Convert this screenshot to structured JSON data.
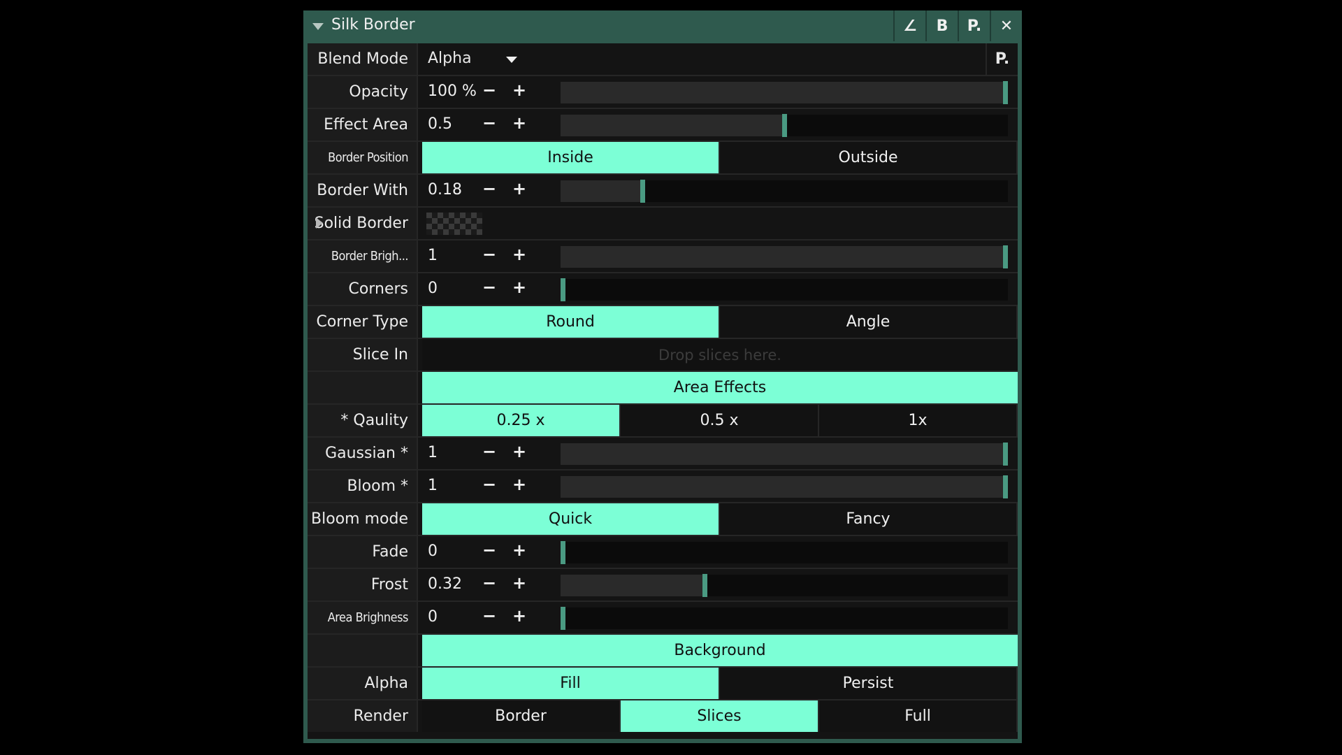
{
  "panel": {
    "title": "Silk Border",
    "title_buttons": [
      {
        "icon": "angle-icon",
        "label": "∠"
      },
      {
        "icon": "bypass-icon",
        "label": "B"
      },
      {
        "icon": "preset-icon",
        "label": "P."
      },
      {
        "icon": "close-icon",
        "label": "✕"
      }
    ]
  },
  "rows": {
    "blend_mode": {
      "label": "Blend Mode",
      "value": "Alpha",
      "preset": "P."
    },
    "opacity": {
      "label": "Opacity",
      "value": "100 %",
      "level": 1.0
    },
    "effect_area": {
      "label": "Effect Area",
      "value": "0.5",
      "level": 0.5
    },
    "border_position": {
      "label": "Border Position",
      "options": [
        "Inside",
        "Outside"
      ],
      "selected": "Inside"
    },
    "border_with": {
      "label": "Border With",
      "value": "0.18",
      "level": 0.18
    },
    "solid_border": {
      "label": "Solid Border"
    },
    "border_brightness": {
      "label": "Border Brigh...",
      "value": "1",
      "level": 1.0
    },
    "corners": {
      "label": "Corners",
      "value": "0",
      "level": 0.0
    },
    "corner_type": {
      "label": "Corner Type",
      "options": [
        "Round",
        "Angle"
      ],
      "selected": "Round"
    },
    "slice_in": {
      "label": "Slice In",
      "placeholder": "Drop slices here."
    },
    "area_effects_header": "Area Effects",
    "quality": {
      "label": "* Qaulity",
      "options": [
        "0.25 x",
        "0.5 x",
        "1x"
      ],
      "selected": "0.25 x"
    },
    "gaussian": {
      "label": "Gaussian *",
      "value": "1",
      "level": 1.0
    },
    "bloom": {
      "label": "Bloom *",
      "value": "1",
      "level": 1.0
    },
    "bloom_mode": {
      "label": "Bloom mode",
      "options": [
        "Quick",
        "Fancy"
      ],
      "selected": "Quick"
    },
    "fade": {
      "label": "Fade",
      "value": "0",
      "level": 0.0
    },
    "frost": {
      "label": "Frost",
      "value": "0.32",
      "level": 0.32
    },
    "area_brightness": {
      "label": "Area Brighness",
      "value": "0",
      "level": 0.0
    },
    "background_header": "Background",
    "alpha": {
      "label": "Alpha",
      "options": [
        "Fill",
        "Persist"
      ],
      "selected": "Fill"
    },
    "render": {
      "label": "Render",
      "options": [
        "Border",
        "Slices",
        "Full"
      ],
      "selected": "Slices"
    }
  },
  "stepper": {
    "minus": "−",
    "plus": "+"
  },
  "colors": {
    "accent": "#7cffd6",
    "frame": "#2f5a4e",
    "handle": "#4a9a82"
  }
}
